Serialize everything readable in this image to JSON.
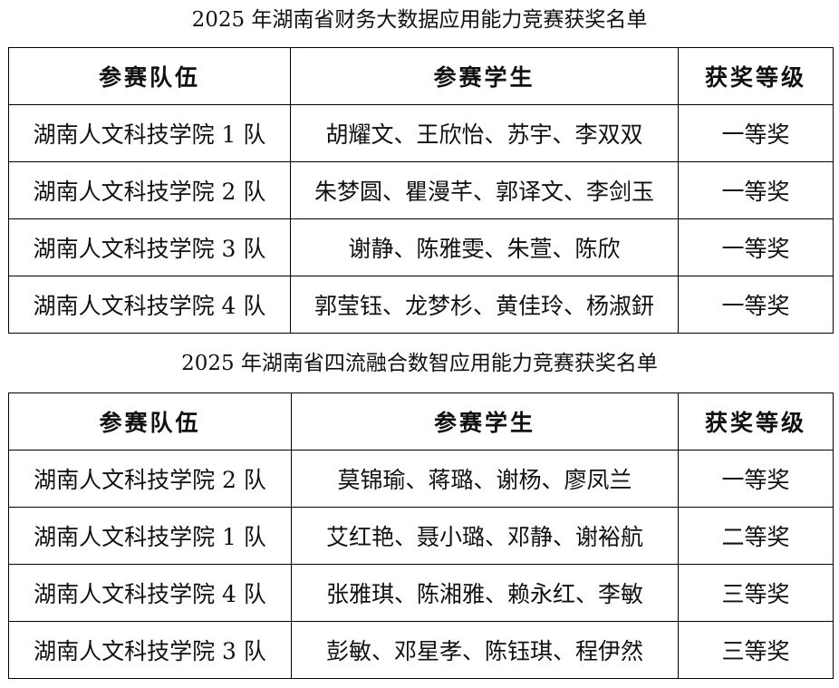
{
  "tables": [
    {
      "title": "2025 年湖南省财务大数据应用能力竞赛获奖名单",
      "headers": [
        "参赛队伍",
        "参赛学生",
        "获奖等级"
      ],
      "rows": [
        [
          "湖南人文科技学院 1 队",
          "胡耀文、王欣怡、苏宇、李双双",
          "一等奖"
        ],
        [
          "湖南人文科技学院 2 队",
          "朱梦圆、瞿漫芊、郭译文、李剑玉",
          "一等奖"
        ],
        [
          "湖南人文科技学院 3 队",
          "谢静、陈雅雯、朱萱、陈欣",
          "一等奖"
        ],
        [
          "湖南人文科技学院 4 队",
          "郭莹钰、龙梦杉、黄佳玲、杨淑鈃",
          "一等奖"
        ]
      ]
    },
    {
      "title": "2025 年湖南省四流融合数智应用能力竞赛获奖名单",
      "headers": [
        "参赛队伍",
        "参赛学生",
        "获奖等级"
      ],
      "rows": [
        [
          "湖南人文科技学院 2 队",
          "莫锦瑜、蒋璐、谢杨、廖凤兰",
          "一等奖"
        ],
        [
          "湖南人文科技学院 1 队",
          "艾红艳、聂小璐、邓静、谢裕航",
          "二等奖"
        ],
        [
          "湖南人文科技学院 4 队",
          "张雅琪、陈湘雅、赖永红、李敏",
          "三等奖"
        ],
        [
          "湖南人文科技学院 3 队",
          "彭敏、邓星孝、陈钰琪、程伊然",
          "三等奖"
        ]
      ]
    }
  ]
}
